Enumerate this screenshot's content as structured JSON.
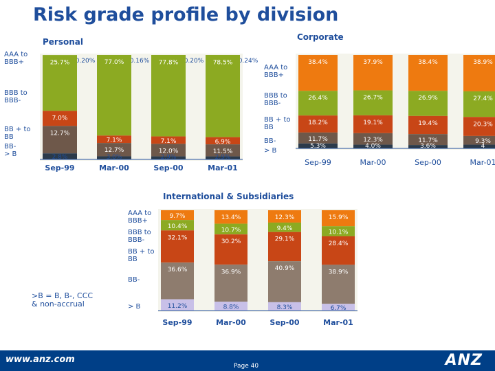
{
  "title": "Risk grade profile by division",
  "page": "Page 40",
  "footer": {
    "url": "www.anz.com",
    "logo": "ANZ"
  },
  "colors": {
    "g1": "#8caa22",
    "g2": "#8caa22",
    "g3": "#c84616",
    "g4": "#6e584a",
    "g5": "#2b3a4a",
    "corp1": "#ee7a10",
    "corp2": "#8caa22",
    "corp3": "#c84616",
    "corp4": "#6e584a",
    "corp5": "#2b3a4a",
    "intl1": "#ee7a10",
    "intl2": "#8caa22",
    "intl3": "#c84616",
    "intl4": "#8e7c6e",
    "intl5": "#c8c0e8"
  },
  "chart_data": [
    {
      "type": "bar",
      "subtitle": "Personal",
      "categories": [
        "Sep-99",
        "Mar-00",
        "Sep-00",
        "Mar-01"
      ],
      "series": [
        {
          "name": "AAA to BBB+",
          "values": [
            0.2,
            0.16,
            0.2,
            0.24
          ],
          "labels": [
            "0.20%",
            "0.16%",
            "0.20%",
            "0.24%"
          ]
        },
        {
          "name": "BBB to BBB-",
          "values": [
            25.7,
            77.0,
            77.8,
            78.5
          ],
          "labels": [
            "25.7%",
            "77.0%",
            "77.8%",
            "78.5%"
          ]
        },
        {
          "name": "BB + to BB",
          "values": [
            7.0,
            7.1,
            7.1,
            6.9
          ],
          "labels": [
            "7.0%",
            "7.1%",
            "7.1%",
            "6.9%"
          ]
        },
        {
          "name": "BB-",
          "values": [
            12.7,
            12.7,
            12.0,
            11.5
          ],
          "labels": [
            "12.7%",
            "12.7%",
            "12.0%",
            "11.5%"
          ]
        },
        {
          "name": "> B",
          "values": [
            2.8,
            3.0,
            2.9,
            2.9
          ],
          "labels": [
            "2.8%",
            "3.0%",
            "2.9%",
            "2.9%"
          ]
        }
      ],
      "row_labels": [
        "AAA to\nBBB+",
        "BBB to\nBBB-",
        "BB + to\nBB",
        "BB-",
        "> B"
      ]
    },
    {
      "type": "bar",
      "subtitle": "Corporate",
      "categories": [
        "Sep-99",
        "Mar-00",
        "Sep-00",
        "Mar-01"
      ],
      "series": [
        {
          "name": "AAA to BBB+",
          "values": [
            38.4,
            37.9,
            38.4,
            38.9
          ],
          "labels": [
            "38.4%",
            "37.9%",
            "38.4%",
            "38.9%"
          ]
        },
        {
          "name": "BBB to BBB-",
          "values": [
            26.4,
            26.7,
            26.9,
            27.4
          ],
          "labels": [
            "26.4%",
            "26.7%",
            "26.9%",
            "27.4%"
          ]
        },
        {
          "name": "BB + to BB",
          "values": [
            18.2,
            19.1,
            19.4,
            20.3
          ],
          "labels": [
            "18.2%",
            "19.1%",
            "19.4%",
            "20.3%"
          ]
        },
        {
          "name": "BB-",
          "values": [
            11.7,
            12.3,
            11.7,
            9.3
          ],
          "labels": [
            "11.7%",
            "12.3%",
            "11.7%",
            "9.3%"
          ]
        },
        {
          "name": "> B",
          "values": [
            5.3,
            4.0,
            3.6,
            4.0
          ],
          "labels": [
            "5.3%",
            "4.0%",
            "3.6%",
            "4"
          ]
        }
      ],
      "row_labels": [
        "AAA to\nBBB+",
        "BBB to\nBBB-",
        "BB + to\nBB",
        "BB-",
        "> B"
      ]
    },
    {
      "type": "bar",
      "subtitle": "International & Subsidiaries",
      "categories": [
        "Sep-99",
        "Mar-00",
        "Sep-00",
        "Mar-01"
      ],
      "series": [
        {
          "name": "AAA to BBB+",
          "values": [
            9.7,
            13.4,
            12.3,
            15.9
          ],
          "labels": [
            "9.7%",
            "13.4%",
            "12.3%",
            "15.9%"
          ]
        },
        {
          "name": "BBB to BBB-",
          "values": [
            10.4,
            10.7,
            9.4,
            10.1
          ],
          "labels": [
            "10.4%",
            "10.7%",
            "9.4%",
            "10.1%"
          ]
        },
        {
          "name": "BB + to BB",
          "values": [
            32.1,
            30.2,
            29.1,
            28.4
          ],
          "labels": [
            "32.1%",
            "30.2%",
            "29.1%",
            "28.4%"
          ]
        },
        {
          "name": "BB-",
          "values": [
            36.6,
            36.9,
            40.9,
            38.9
          ],
          "labels": [
            "36.6%",
            "36.9%",
            "40.9%",
            "38.9%"
          ]
        },
        {
          "name": "> B",
          "values": [
            11.2,
            8.8,
            8.3,
            6.7
          ],
          "labels": [
            "11.2%",
            "8.8%",
            "8.3%",
            "6.7%"
          ]
        }
      ],
      "row_labels": [
        "AAA to\nBBB+",
        "BBB to\nBBB-",
        "BB + to\nBB",
        "BB-",
        "> B"
      ],
      "note": ">B = B, B-, CCC\n& non-accrual"
    }
  ]
}
